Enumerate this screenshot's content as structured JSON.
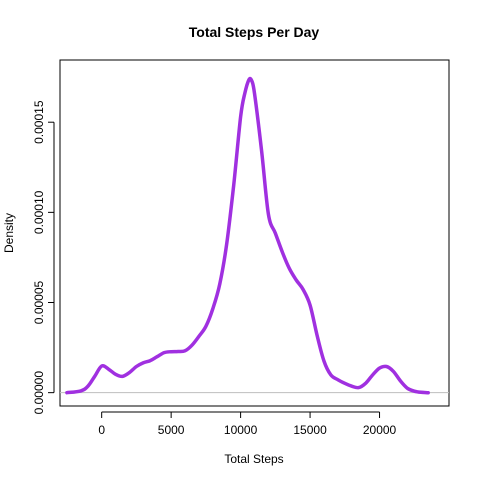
{
  "chart_data": {
    "type": "line",
    "title": "Total Steps Per Day",
    "xlabel": "Total Steps",
    "ylabel": "Density",
    "xlim": [
      -3000,
      25000
    ],
    "ylim": [
      -7.4e-06,
      0.0001845
    ],
    "x_ticks": [
      0,
      5000,
      10000,
      15000,
      20000
    ],
    "x_tick_labels": [
      "0",
      "5000",
      "10000",
      "15000",
      "20000"
    ],
    "y_ticks": [
      0,
      5e-05,
      0.0001,
      0.00015
    ],
    "y_tick_labels": [
      "0.00000",
      "0.00005",
      "0.00010",
      "0.00015"
    ],
    "grid": false,
    "baseline": 0,
    "colors": {
      "line": "#a030e0",
      "baseline": "#bebebe",
      "frame": "#000000"
    },
    "series": [
      {
        "x": [
          -2500,
          -1500,
          -1000,
          -500,
          0,
          500,
          1000,
          1500,
          2000,
          2500,
          3000,
          3500,
          4000,
          4500,
          5000,
          5500,
          6000,
          6500,
          7000,
          7500,
          8000,
          8500,
          9000,
          9500,
          10000,
          10300,
          10600,
          10800,
          11000,
          11500,
          12000,
          12500,
          13000,
          13500,
          14000,
          14500,
          15000,
          15500,
          16000,
          16500,
          17000,
          17500,
          18000,
          18500,
          19000,
          19500,
          20000,
          20500,
          21000,
          21500,
          22000,
          22500,
          23000,
          23500
        ],
        "y": [
          0,
          1e-06,
          3.5e-06,
          9e-06,
          1.48e-05,
          1.3e-05,
          1.02e-05,
          9e-06,
          1.12e-05,
          1.45e-05,
          1.66e-05,
          1.78e-05,
          2e-05,
          2.22e-05,
          2.27e-05,
          2.28e-05,
          2.32e-05,
          2.63e-05,
          3.12e-05,
          3.68e-05,
          4.65e-05,
          6.03e-05,
          8.25e-05,
          0.000115,
          0.000153,
          0.000166,
          0.0001735,
          0.000173,
          0.000166,
          0.000135,
          9.9e-05,
          8.85e-05,
          7.8e-05,
          6.9e-05,
          6.25e-05,
          5.72e-05,
          4.85e-05,
          3.2e-05,
          1.75e-05,
          9.8e-06,
          7.2e-06,
          5.2e-06,
          3.6e-06,
          2.8e-06,
          5.2e-06,
          9.8e-06,
          1.36e-05,
          1.45e-05,
          1.18e-05,
          6.5e-06,
          2.5e-06,
          8e-07,
          2e-07,
          0
        ]
      }
    ]
  }
}
